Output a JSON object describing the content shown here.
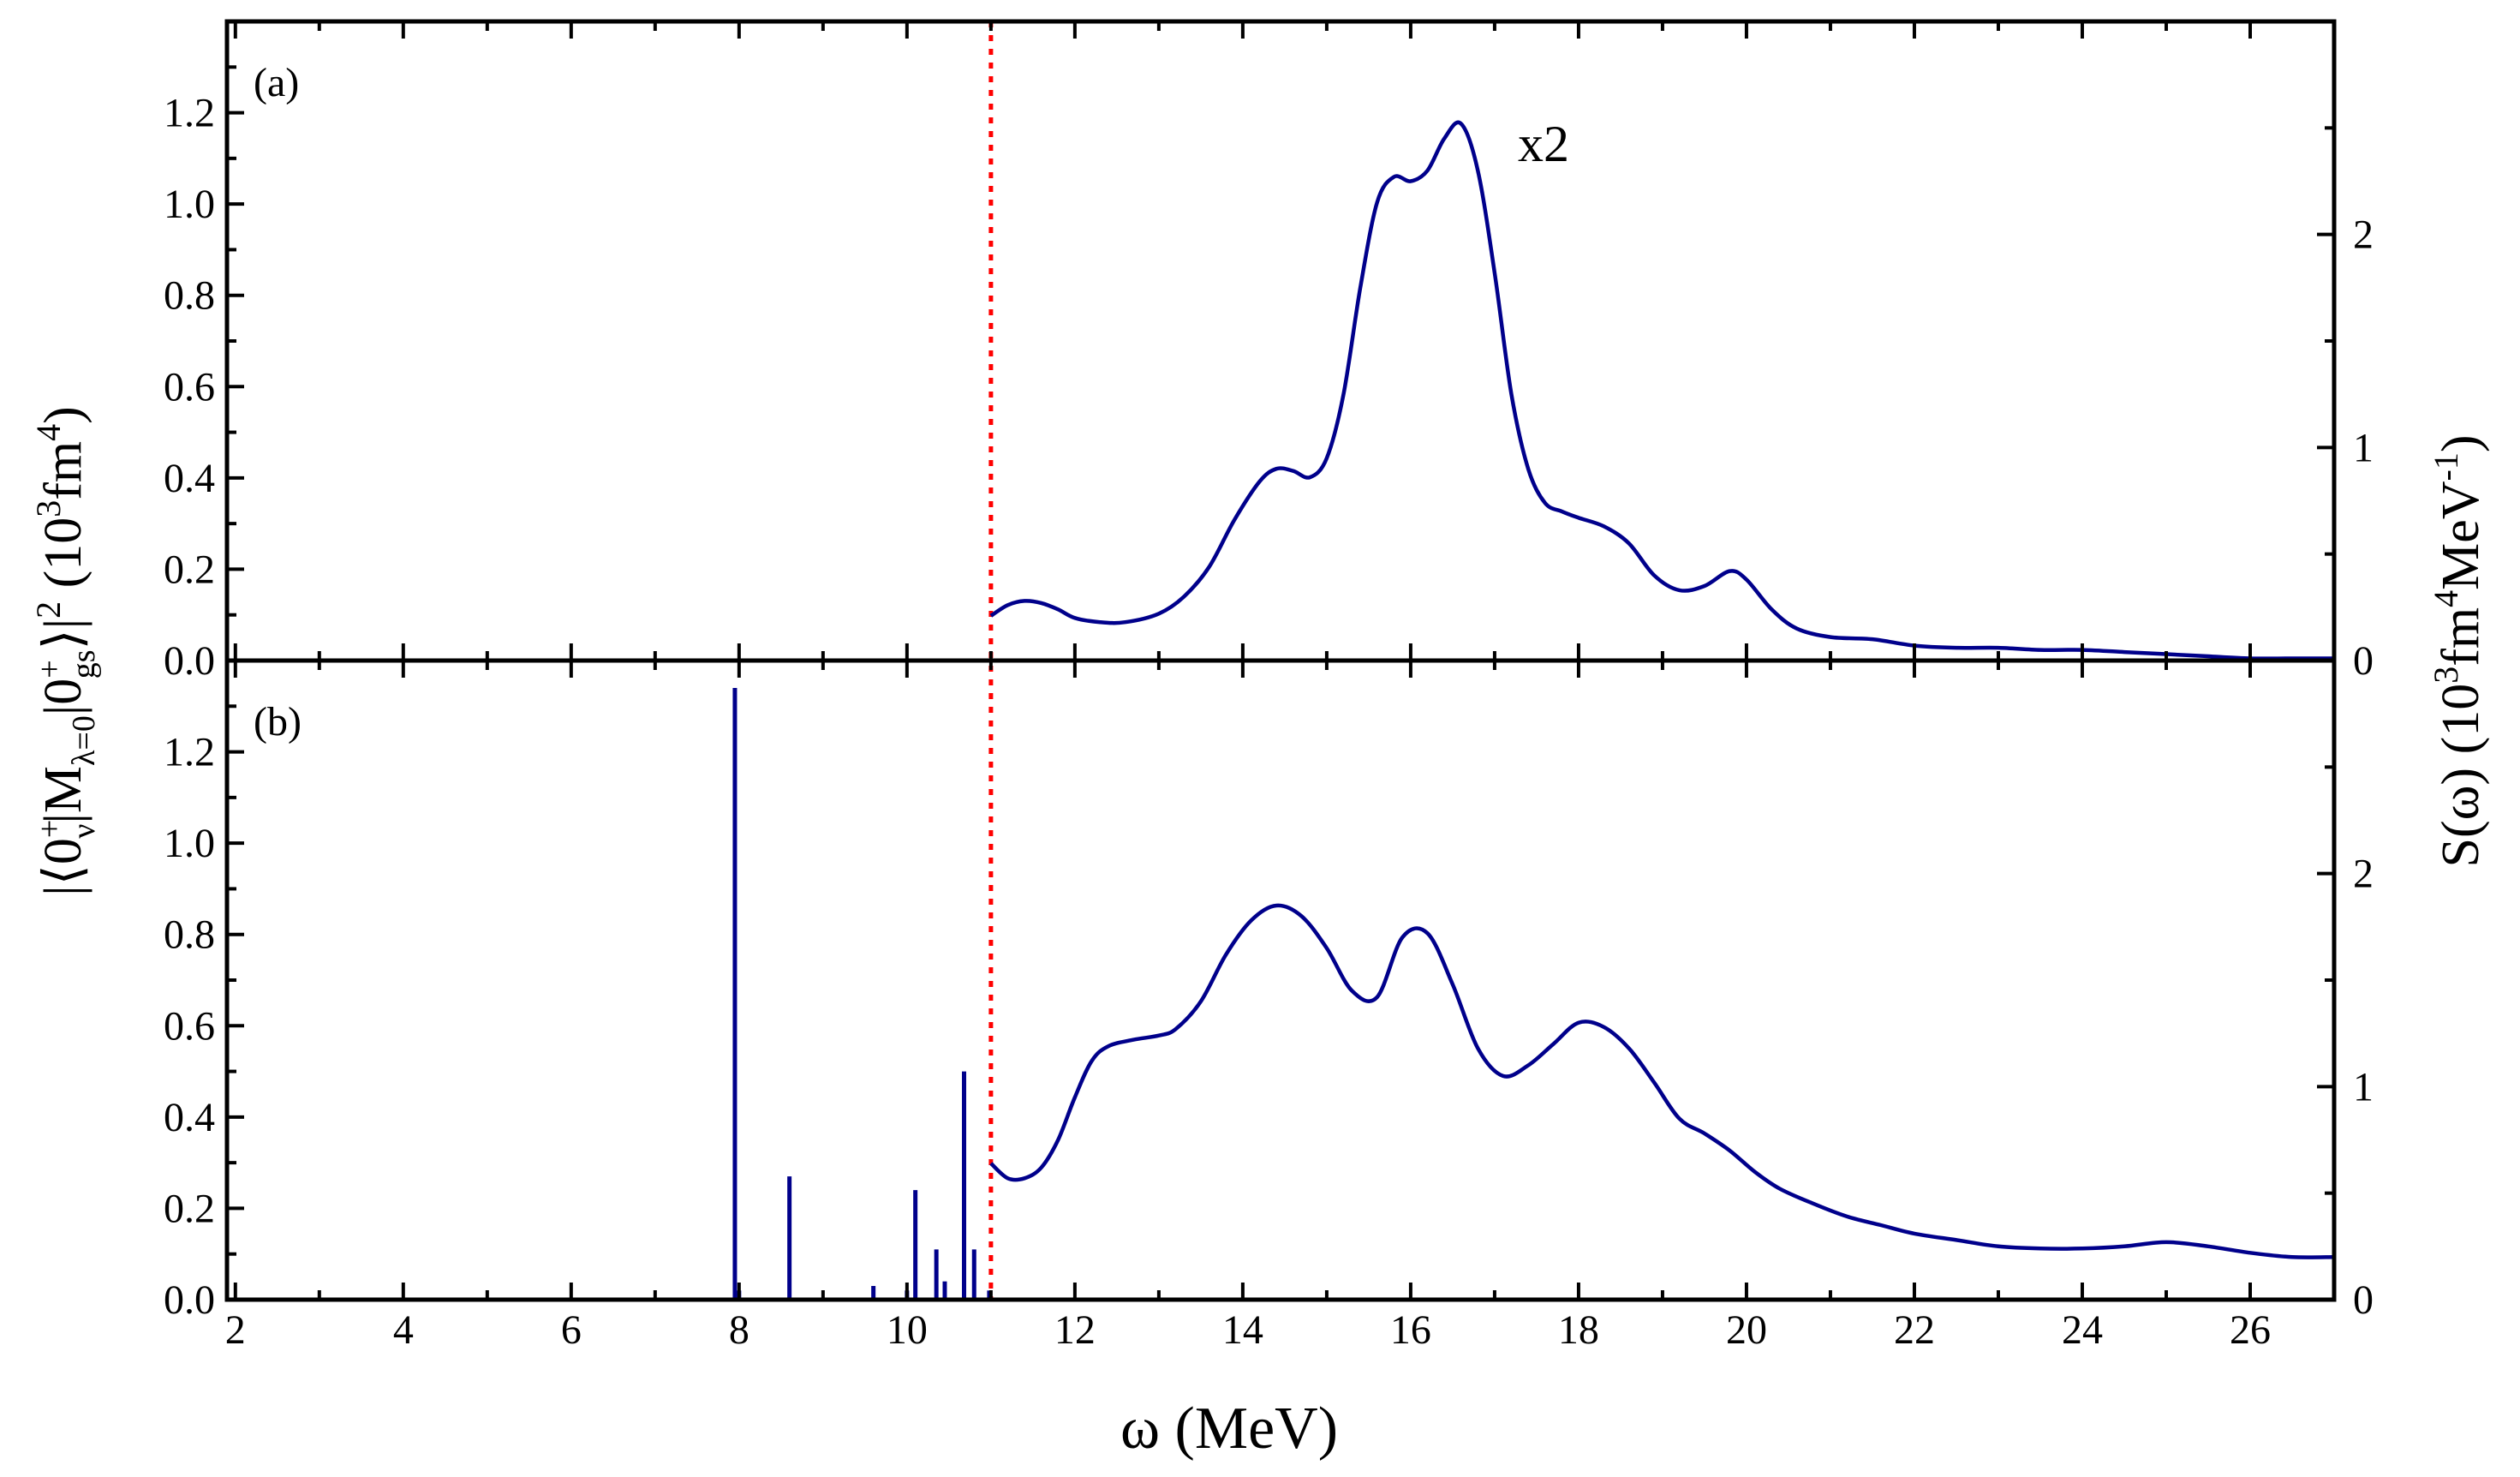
{
  "chart_data": {
    "type": "line",
    "xlabel": "ω (MeV)",
    "xlim": [
      1.9,
      27
    ],
    "xticks": [
      2,
      4,
      6,
      8,
      10,
      12,
      14,
      16,
      18,
      20,
      22,
      24,
      26
    ],
    "ylabel_left": {
      "abs_bar": "|",
      "bra": "⟨0",
      "bra_sup": "+",
      "bra_sub": "ν",
      "op": "|M",
      "op_sub": "λ=0",
      "ket": "|0",
      "ket_sup": "+",
      "ket_sub": "gs",
      "close": "⟩|",
      "pow": "2",
      "units_open": " (10",
      "units_sup": "3",
      "units_mid": "fm",
      "units_sup2": "4",
      "units_close": ")"
    },
    "ylabel_right": {
      "prefix": "S(ω) (10",
      "sup1": "3",
      "mid": "fm",
      "sup2": "4",
      "mid2": "MeV",
      "sup3": "-1",
      "suffix": ")"
    },
    "threshold_x": 11.0,
    "panels": [
      {
        "label": "(a)",
        "annotation": "x2",
        "ylim_left": [
          0,
          1.4
        ],
        "yticks_left": [
          "0.0",
          "0.2",
          "0.4",
          "0.6",
          "0.8",
          "1.0",
          "1.2"
        ],
        "ylim_right": [
          0,
          3.0
        ],
        "yticks_right": [
          "0",
          "1",
          "2"
        ],
        "strength_curve": {
          "x": [
            11.0,
            11.2,
            11.4,
            11.6,
            11.8,
            12.0,
            12.3,
            12.6,
            13.0,
            13.3,
            13.6,
            13.9,
            14.2,
            14.4,
            14.6,
            14.8,
            15.0,
            15.2,
            15.4,
            15.6,
            15.8,
            16.0,
            16.2,
            16.4,
            16.6,
            16.8,
            17.0,
            17.2,
            17.4,
            17.6,
            17.8,
            18.0,
            18.3,
            18.6,
            18.9,
            19.2,
            19.5,
            19.8,
            20.0,
            20.3,
            20.6,
            21.0,
            21.5,
            22.0,
            22.5,
            23.0,
            23.5,
            24.0,
            24.5,
            25.0,
            25.5,
            26.0,
            26.5,
            27.0
          ],
          "S": [
            0.21,
            0.26,
            0.28,
            0.27,
            0.24,
            0.2,
            0.18,
            0.18,
            0.22,
            0.3,
            0.44,
            0.66,
            0.84,
            0.9,
            0.89,
            0.86,
            0.95,
            1.25,
            1.75,
            2.15,
            2.27,
            2.25,
            2.3,
            2.45,
            2.52,
            2.3,
            1.82,
            1.25,
            0.9,
            0.74,
            0.7,
            0.67,
            0.63,
            0.55,
            0.4,
            0.33,
            0.35,
            0.42,
            0.38,
            0.24,
            0.15,
            0.11,
            0.1,
            0.07,
            0.06,
            0.06,
            0.05,
            0.05,
            0.04,
            0.03,
            0.02,
            0.01,
            0.01,
            0.01
          ]
        },
        "discrete_states": []
      },
      {
        "label": "(b)",
        "annotation": "",
        "ylim_left": [
          0,
          1.4
        ],
        "yticks_left": [
          "0.0",
          "0.2",
          "0.4",
          "0.6",
          "0.8",
          "1.0",
          "1.2"
        ],
        "ylim_right": [
          0,
          3.0
        ],
        "yticks_right": [
          "0",
          "1",
          "2"
        ],
        "strength_curve": {
          "x": [
            11.0,
            11.2,
            11.4,
            11.6,
            11.8,
            12.0,
            12.2,
            12.4,
            12.7,
            13.0,
            13.2,
            13.5,
            13.8,
            14.1,
            14.4,
            14.7,
            15.0,
            15.3,
            15.6,
            15.9,
            16.2,
            16.5,
            16.8,
            17.1,
            17.4,
            17.7,
            18.0,
            18.3,
            18.6,
            18.9,
            19.2,
            19.5,
            19.8,
            20.1,
            20.4,
            20.8,
            21.2,
            21.6,
            22.0,
            22.5,
            23.0,
            23.5,
            24.0,
            24.5,
            25.0,
            25.5,
            26.0,
            26.5,
            27.0
          ],
          "S": [
            0.64,
            0.57,
            0.57,
            0.62,
            0.75,
            0.95,
            1.12,
            1.19,
            1.22,
            1.24,
            1.27,
            1.4,
            1.62,
            1.78,
            1.85,
            1.8,
            1.65,
            1.45,
            1.42,
            1.7,
            1.72,
            1.48,
            1.18,
            1.05,
            1.1,
            1.2,
            1.3,
            1.28,
            1.18,
            1.02,
            0.85,
            0.78,
            0.7,
            0.6,
            0.52,
            0.45,
            0.39,
            0.35,
            0.31,
            0.28,
            0.25,
            0.24,
            0.24,
            0.25,
            0.27,
            0.25,
            0.22,
            0.2,
            0.2
          ]
        },
        "discrete_states": [
          {
            "x": 7.95,
            "B": 1.34
          },
          {
            "x": 8.0,
            "B": 0.02
          },
          {
            "x": 8.6,
            "B": 0.27
          },
          {
            "x": 9.6,
            "B": 0.03
          },
          {
            "x": 10.0,
            "B": 0.02
          },
          {
            "x": 10.1,
            "B": 0.24
          },
          {
            "x": 10.35,
            "B": 0.11
          },
          {
            "x": 10.45,
            "B": 0.04
          },
          {
            "x": 10.68,
            "B": 0.5
          },
          {
            "x": 10.8,
            "B": 0.11
          },
          {
            "x": 10.98,
            "B": 0.02
          }
        ]
      }
    ]
  }
}
